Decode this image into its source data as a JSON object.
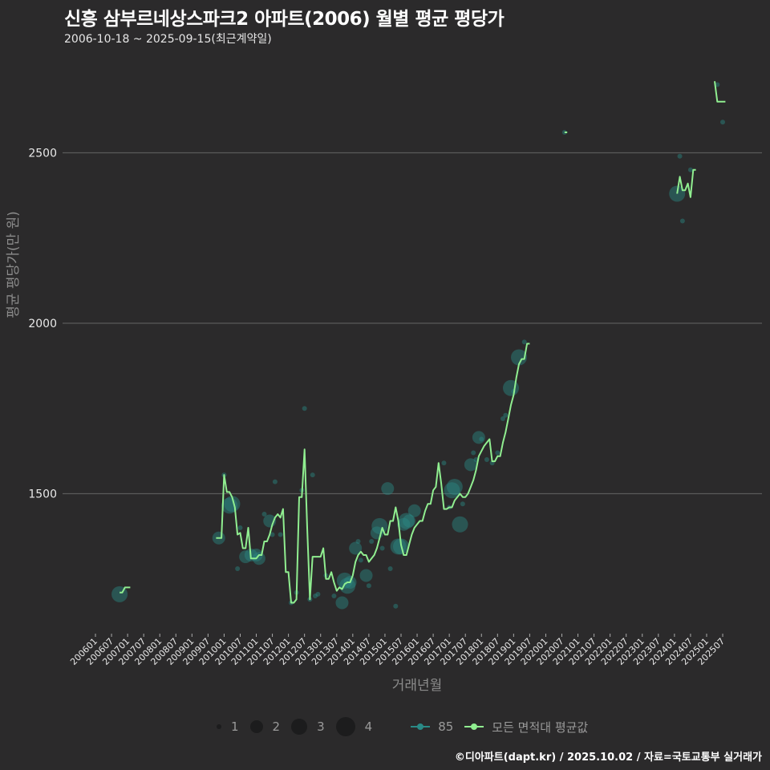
{
  "header": {
    "title": "신흥 삼부르네상스파크2 아파트(2006) 월별 평균 평당가",
    "subtitle": "2006-10-18 ~ 2025-09-15(최근계약일)"
  },
  "axes": {
    "ylabel": "평균 평당가(만 원)",
    "xlabel": "거래년월",
    "yticks": [
      "1500",
      "2000",
      "2500"
    ],
    "xticks": [
      "200601",
      "200607",
      "200701",
      "200707",
      "200801",
      "200807",
      "200901",
      "200907",
      "201001",
      "201007",
      "201101",
      "201107",
      "201201",
      "201207",
      "201301",
      "201307",
      "201401",
      "201407",
      "201501",
      "201507",
      "201601",
      "201607",
      "201701",
      "201707",
      "201801",
      "201807",
      "201901",
      "201907",
      "202001",
      "202007",
      "202101",
      "202107",
      "202201",
      "202207",
      "202301",
      "202307",
      "202401",
      "202407",
      "202501",
      "202507"
    ]
  },
  "legend": {
    "sizes": [
      {
        "label": "1",
        "d": 6
      },
      {
        "label": "2",
        "d": 16
      },
      {
        "label": "3",
        "d": 20
      },
      {
        "label": "4",
        "d": 24
      }
    ],
    "series": [
      {
        "label": "85",
        "color": "#2a8a86"
      },
      {
        "label": "모든 면적대 평균값",
        "color": "#90ee90"
      }
    ]
  },
  "footer": "©디아파트(dapt.kr) / 2025.10.02 / 자료=국토교통부 실거래가",
  "colors": {
    "background": "#2b2a2b",
    "grid": "#5a5a5a",
    "avg_line": "#90ee90",
    "bubble": "#2a8a86"
  },
  "chart_data": {
    "type": "line",
    "title": "신흥 삼부르네상스파크2 아파트(2006) 월별 평균 평당가",
    "xlabel": "거래년월",
    "ylabel": "평균 평당가(만 원)",
    "ylim": [
      1100,
      2750
    ],
    "grid": true,
    "legend_position": "bottom",
    "series": [
      {
        "name": "모든 면적대 평균값",
        "segments": [
          [
            [
              "200610",
              1210
            ],
            [
              "200611",
              1210
            ],
            [
              "200612",
              1225
            ],
            [
              "200701",
              1225
            ],
            [
              "200702",
              1225
            ]
          ],
          [
            [
              "200910",
              1370
            ],
            [
              "200911",
              1370
            ],
            [
              "200912",
              1370
            ],
            [
              "201001",
              1555
            ],
            [
              "201002",
              1505
            ],
            [
              "201003",
              1505
            ],
            [
              "201004",
              1490
            ],
            [
              "201005",
              1460
            ],
            [
              "201006",
              1380
            ],
            [
              "201007",
              1385
            ],
            [
              "201008",
              1340
            ],
            [
              "201009",
              1340
            ],
            [
              "201010",
              1400
            ],
            [
              "201011",
              1310
            ],
            [
              "201012",
              1310
            ],
            [
              "201101",
              1310
            ],
            [
              "201102",
              1320
            ],
            [
              "201103",
              1320
            ],
            [
              "201104",
              1360
            ],
            [
              "201105",
              1360
            ],
            [
              "201106",
              1380
            ],
            [
              "201107",
              1410
            ],
            [
              "201108",
              1430
            ],
            [
              "201109",
              1440
            ],
            [
              "201110",
              1430
            ],
            [
              "201111",
              1455
            ],
            [
              "201112",
              1270
            ],
            [
              "201201",
              1270
            ],
            [
              "201202",
              1180
            ],
            [
              "201203",
              1180
            ],
            [
              "201204",
              1190
            ],
            [
              "201205",
              1490
            ],
            [
              "201206",
              1490
            ],
            [
              "201207",
              1630
            ],
            [
              "201208",
              1400
            ],
            [
              "201209",
              1190
            ],
            [
              "201210",
              1315
            ],
            [
              "201211",
              1315
            ],
            [
              "201212",
              1315
            ],
            [
              "201301",
              1315
            ],
            [
              "201302",
              1340
            ],
            [
              "201303",
              1250
            ],
            [
              "201304",
              1250
            ],
            [
              "201305",
              1270
            ],
            [
              "201306",
              1240
            ],
            [
              "201307",
              1215
            ],
            [
              "201308",
              1225
            ],
            [
              "201309",
              1220
            ],
            [
              "201310",
              1235
            ],
            [
              "201311",
              1240
            ],
            [
              "201312",
              1240
            ],
            [
              "201401",
              1260
            ],
            [
              "201402",
              1300
            ],
            [
              "201403",
              1320
            ],
            [
              "201404",
              1330
            ],
            [
              "201405",
              1320
            ],
            [
              "201406",
              1320
            ],
            [
              "201407",
              1300
            ],
            [
              "201408",
              1310
            ],
            [
              "201409",
              1320
            ],
            [
              "201410",
              1340
            ],
            [
              "201411",
              1370
            ],
            [
              "201412",
              1400
            ],
            [
              "201501",
              1380
            ],
            [
              "201502",
              1380
            ],
            [
              "201503",
              1420
            ],
            [
              "201504",
              1420
            ],
            [
              "201505",
              1460
            ],
            [
              "201506",
              1420
            ],
            [
              "201507",
              1350
            ],
            [
              "201508",
              1320
            ],
            [
              "201509",
              1320
            ],
            [
              "201510",
              1350
            ],
            [
              "201511",
              1380
            ],
            [
              "201512",
              1400
            ],
            [
              "201601",
              1410
            ],
            [
              "201602",
              1420
            ],
            [
              "201603",
              1420
            ],
            [
              "201604",
              1450
            ],
            [
              "201605",
              1470
            ],
            [
              "201606",
              1470
            ],
            [
              "201607",
              1510
            ],
            [
              "201608",
              1520
            ],
            [
              "201609",
              1590
            ],
            [
              "201610",
              1530
            ],
            [
              "201611",
              1455
            ],
            [
              "201612",
              1455
            ],
            [
              "201701",
              1460
            ],
            [
              "201702",
              1460
            ],
            [
              "201703",
              1480
            ],
            [
              "201704",
              1490
            ],
            [
              "201705",
              1500
            ],
            [
              "201706",
              1490
            ],
            [
              "201707",
              1490
            ],
            [
              "201708",
              1500
            ],
            [
              "201709",
              1520
            ],
            [
              "201710",
              1540
            ],
            [
              "201711",
              1570
            ],
            [
              "201712",
              1610
            ],
            [
              "201801",
              1625
            ],
            [
              "201802",
              1640
            ],
            [
              "201803",
              1650
            ],
            [
              "201804",
              1660
            ],
            [
              "201805",
              1595
            ],
            [
              "201806",
              1595
            ],
            [
              "201807",
              1610
            ],
            [
              "201808",
              1610
            ],
            [
              "201809",
              1650
            ],
            [
              "201810",
              1680
            ],
            [
              "201811",
              1720
            ],
            [
              "201812",
              1760
            ],
            [
              "201901",
              1790
            ],
            [
              "201902",
              1840
            ],
            [
              "201903",
              1880
            ],
            [
              "201904",
              1895
            ],
            [
              "201905",
              1895
            ],
            [
              "201906",
              1940
            ],
            [
              "201907",
              1940
            ]
          ]
        ],
        "extra_segments": [
          [
            [
              "202008",
              2560
            ],
            [
              "202009",
              2560
            ]
          ],
          [
            [
              "202402",
              2380
            ],
            [
              "202403",
              2430
            ],
            [
              "202404",
              2390
            ],
            [
              "202405",
              2390
            ],
            [
              "202406",
              2410
            ],
            [
              "202407",
              2370
            ],
            [
              "202408",
              2450
            ],
            [
              "202409",
              2450
            ]
          ],
          [
            [
              "202504",
              2710
            ],
            [
              "202505",
              2650
            ],
            [
              "202506",
              2650
            ],
            [
              "202507",
              2650
            ],
            [
              "202508",
              2650
            ]
          ]
        ]
      },
      {
        "name": "85",
        "type": "bubble",
        "points": [
          [
            "200610",
            1205,
            3
          ],
          [
            "200911",
            1370,
            2
          ],
          [
            "201001",
            1555,
            1
          ],
          [
            "201003",
            1465,
            3
          ],
          [
            "201004",
            1470,
            3
          ],
          [
            "201006",
            1280,
            1
          ],
          [
            "201007",
            1400,
            1
          ],
          [
            "201009",
            1315,
            2
          ],
          [
            "201011",
            1320,
            2
          ],
          [
            "201101",
            1320,
            2
          ],
          [
            "201102",
            1310,
            2
          ],
          [
            "201104",
            1440,
            1
          ],
          [
            "201106",
            1420,
            2
          ],
          [
            "201107",
            1380,
            1
          ],
          [
            "201108",
            1535,
            1
          ],
          [
            "201110",
            1380,
            1
          ],
          [
            "201202",
            1180,
            1
          ],
          [
            "201204",
            1210,
            1
          ],
          [
            "201206",
            1510,
            1
          ],
          [
            "201207",
            1750,
            1
          ],
          [
            "201209",
            1190,
            1
          ],
          [
            "201210",
            1555,
            1
          ],
          [
            "201211",
            1200,
            1
          ],
          [
            "201212",
            1205,
            1
          ],
          [
            "201303",
            1260,
            1
          ],
          [
            "201306",
            1200,
            1
          ],
          [
            "201309",
            1180,
            2
          ],
          [
            "201310",
            1245,
            3
          ],
          [
            "201311",
            1230,
            3
          ],
          [
            "201312",
            1240,
            2
          ],
          [
            "201402",
            1340,
            2
          ],
          [
            "201403",
            1360,
            1
          ],
          [
            "201404",
            1305,
            1
          ],
          [
            "201406",
            1260,
            2
          ],
          [
            "201407",
            1230,
            1
          ],
          [
            "201408",
            1360,
            1
          ],
          [
            "201410",
            1385,
            2
          ],
          [
            "201411",
            1405,
            3
          ],
          [
            "201412",
            1340,
            1
          ],
          [
            "201502",
            1515,
            2
          ],
          [
            "201503",
            1280,
            1
          ],
          [
            "201505",
            1170,
            1
          ],
          [
            "201506",
            1345,
            3
          ],
          [
            "201507",
            1345,
            3
          ],
          [
            "201508",
            1410,
            2
          ],
          [
            "201509",
            1420,
            3
          ],
          [
            "201510",
            1420,
            2
          ],
          [
            "201512",
            1450,
            2
          ],
          [
            "201611",
            1590,
            1
          ],
          [
            "201701",
            1460,
            1
          ],
          [
            "201702",
            1510,
            3
          ],
          [
            "201703",
            1520,
            3
          ],
          [
            "201705",
            1410,
            3
          ],
          [
            "201706",
            1470,
            1
          ],
          [
            "201709",
            1585,
            2
          ],
          [
            "201710",
            1620,
            1
          ],
          [
            "201711",
            1600,
            1
          ],
          [
            "201712",
            1665,
            2
          ],
          [
            "201801",
            1660,
            1
          ],
          [
            "201803",
            1600,
            1
          ],
          [
            "201805",
            1590,
            1
          ],
          [
            "201807",
            1620,
            1
          ],
          [
            "201809",
            1720,
            1
          ],
          [
            "201810",
            1730,
            1
          ],
          [
            "201812",
            1810,
            3
          ],
          [
            "201901",
            1800,
            1
          ],
          [
            "201903",
            1900,
            3
          ],
          [
            "201905",
            1945,
            1
          ],
          [
            "202008",
            2560,
            1
          ],
          [
            "202402",
            2380,
            3
          ],
          [
            "202403",
            2490,
            1
          ],
          [
            "202404",
            2300,
            1
          ],
          [
            "202407",
            2450,
            1
          ],
          [
            "202505",
            2700,
            1
          ],
          [
            "202507",
            2590,
            1
          ]
        ]
      }
    ]
  }
}
